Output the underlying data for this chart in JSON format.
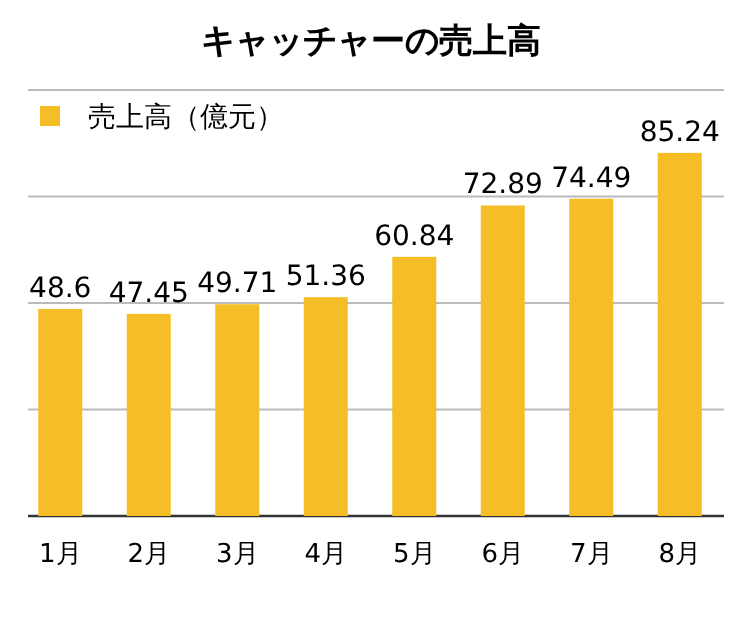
{
  "chart_data": {
    "type": "bar",
    "title": "キャッチャーの売上高",
    "categories": [
      "1月",
      "2月",
      "3月",
      "4月",
      "5月",
      "6月",
      "7月",
      "8月"
    ],
    "series": [
      {
        "name": "売上高（億元）",
        "color": "#f5bd26",
        "values": [
          48.6,
          47.45,
          49.71,
          51.36,
          60.84,
          72.89,
          74.49,
          85.24
        ]
      }
    ],
    "ylim": [
      0,
      100
    ],
    "yticks": [
      {
        "value": 0,
        "label": null
      },
      {
        "value": 25,
        "label": null
      },
      {
        "value": 50,
        "label": null
      },
      {
        "value": 75,
        "label": null
      },
      {
        "value": 100,
        "label": null
      }
    ],
    "grid": "y",
    "legend": "top left",
    "tick_labels": "x",
    "data_labels": true
  }
}
